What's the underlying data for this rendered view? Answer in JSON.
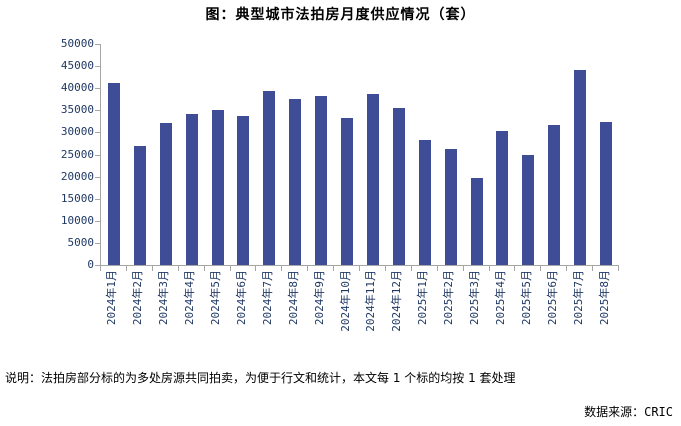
{
  "chart_data": {
    "type": "bar",
    "title": "图：典型城市法拍房月度供应情况（套）",
    "categories": [
      "2024年1月",
      "2024年2月",
      "2024年3月",
      "2024年4月",
      "2024年5月",
      "2024年6月",
      "2024年7月",
      "2024年8月",
      "2024年9月",
      "2024年10月",
      "2024年11月",
      "2024年12月",
      "2025年1月",
      "2025年2月",
      "2025年3月",
      "2025年4月",
      "2025年5月",
      "2025年6月",
      "2025年7月",
      "2025年8月"
    ],
    "values": [
      41200,
      27000,
      32100,
      34100,
      35100,
      33600,
      39300,
      37600,
      38300,
      33300,
      38800,
      35600,
      28300,
      26300,
      19700,
      30400,
      24900,
      31600,
      44100,
      32300
    ],
    "xlabel": "",
    "ylabel": "",
    "ylim": [
      0,
      50000
    ],
    "ytick_step": 5000,
    "grid": false,
    "legend": "none",
    "bar_color": "#3E4D96",
    "axis_color": "#A6A6A6",
    "tick_label_color": "#1F3864"
  },
  "footer": {
    "note": "说明：法拍房部分标的为多处房源共同拍卖，为便于行文和统计，本文每 1 个标的均按 1 套处理",
    "source": "数据来源：CRIC"
  }
}
